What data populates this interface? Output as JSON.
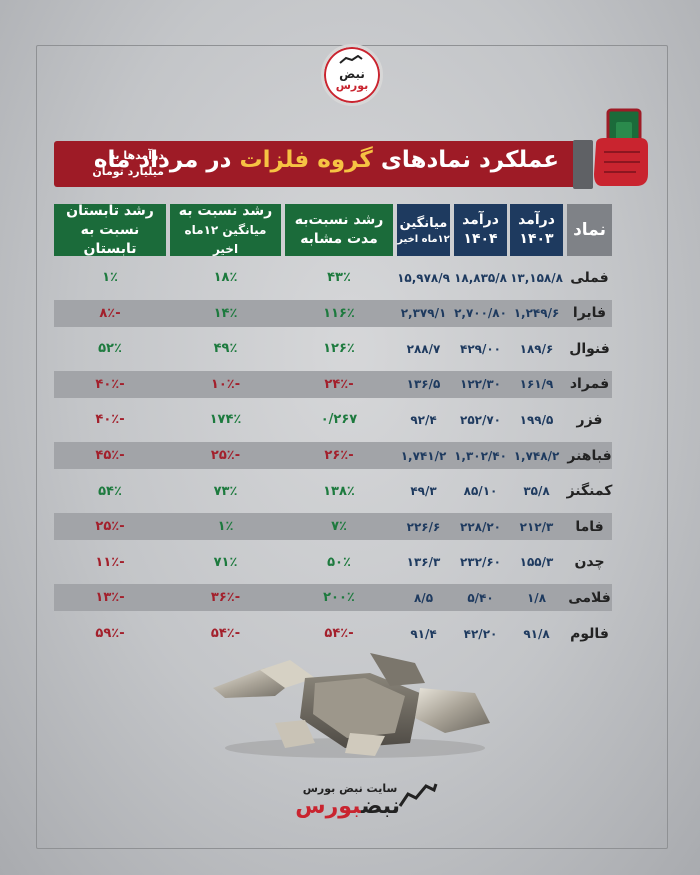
{
  "logo": {
    "line1": "نبض",
    "line2": "بورس"
  },
  "banner": {
    "title_pre": "عملکرد نمادهای ",
    "title_highlight": "گروه فلزات",
    "title_post": " در مرداد ماه",
    "note": "درآمدها به میلیارد تومان"
  },
  "headers": {
    "symbol": "نماد",
    "rev1403_l1": "درآمد",
    "rev1403_l2": "۱۴۰۳",
    "rev1404_l1": "درآمد",
    "rev1404_l2": "۱۴۰۴",
    "avg_l1": "میانگین",
    "avg_l2": "۱۲ماه اخیر",
    "growth_same_l1": "رشد نسبت‌به",
    "growth_same_l2": "مدت مشابه",
    "growth_avg_l1": "رشد نسبت به",
    "growth_avg_l2": "میانگین ۱۲ماه اخیر",
    "growth_summer_l1": "رشد تابستان",
    "growth_summer_l2": "نسبت به تابستان"
  },
  "rows": [
    {
      "symbol": "فملی",
      "rev1403": "۱۳,۱۵۸/۸",
      "rev1404": "۱۸,۸۳۵/۸",
      "avg": "۱۵,۹۷۸/۹",
      "g_same": "۴۳٪",
      "g_avg": "۱۸٪",
      "g_summer": "۱٪",
      "s_same": "pos",
      "s_avg": "pos",
      "s_summer": "pos"
    },
    {
      "symbol": "فایرا",
      "rev1403": "۱,۲۴۹/۶",
      "rev1404": "۲,۷۰۰/۸۰",
      "avg": "۲,۳۷۹/۱",
      "g_same": "۱۱۶٪",
      "g_avg": "۱۴٪",
      "g_summer": "-۸٪",
      "s_same": "pos",
      "s_avg": "pos",
      "s_summer": "neg"
    },
    {
      "symbol": "فنوال",
      "rev1403": "۱۸۹/۶",
      "rev1404": "۴۲۹/۰۰",
      "avg": "۲۸۸/۷",
      "g_same": "۱۲۶٪",
      "g_avg": "۴۹٪",
      "g_summer": "۵۲٪",
      "s_same": "pos",
      "s_avg": "pos",
      "s_summer": "pos"
    },
    {
      "symbol": "فمراد",
      "rev1403": "۱۶۱/۹",
      "rev1404": "۱۲۲/۳۰",
      "avg": "۱۳۶/۵",
      "g_same": "-۲۴٪",
      "g_avg": "-۱۰٪",
      "g_summer": "-۴۰٪",
      "s_same": "neg",
      "s_avg": "neg",
      "s_summer": "neg"
    },
    {
      "symbol": "فزر",
      "rev1403": "۱۹۹/۵",
      "rev1404": "۲۵۲/۷۰",
      "avg": "۹۲/۴",
      "g_same": "۰/۲۶۷",
      "g_avg": "۱۷۴٪",
      "g_summer": "-۴۰٪",
      "s_same": "pos",
      "s_avg": "pos",
      "s_summer": "neg"
    },
    {
      "symbol": "فباهنر",
      "rev1403": "۱,۷۴۸/۲",
      "rev1404": "۱,۳۰۲/۴۰",
      "avg": "۱,۷۴۱/۲",
      "g_same": "-۲۶٪",
      "g_avg": "-۲۵٪",
      "g_summer": "-۴۵٪",
      "s_same": "neg",
      "s_avg": "neg",
      "s_summer": "neg"
    },
    {
      "symbol": "کمنگنز",
      "rev1403": "۳۵/۸",
      "rev1404": "۸۵/۱۰",
      "avg": "۴۹/۳",
      "g_same": "۱۳۸٪",
      "g_avg": "۷۳٪",
      "g_summer": "۵۴٪",
      "s_same": "pos",
      "s_avg": "pos",
      "s_summer": "pos"
    },
    {
      "symbol": "فاما",
      "rev1403": "۲۱۲/۳",
      "rev1404": "۲۲۸/۲۰",
      "avg": "۲۲۶/۶",
      "g_same": "۷٪",
      "g_avg": "۱٪",
      "g_summer": "-۲۵٪",
      "s_same": "pos",
      "s_avg": "pos",
      "s_summer": "neg"
    },
    {
      "symbol": "چدن",
      "rev1403": "۱۵۵/۳",
      "rev1404": "۲۳۲/۶۰",
      "avg": "۱۳۶/۳",
      "g_same": "۵۰٪",
      "g_avg": "۷۱٪",
      "g_summer": "-۱۱٪",
      "s_same": "pos",
      "s_avg": "pos",
      "s_summer": "neg"
    },
    {
      "symbol": "فلامی",
      "rev1403": "۱/۸",
      "rev1404": "۵/۴۰",
      "avg": "۸/۵",
      "g_same": "۲۰۰٪",
      "g_avg": "-۳۶٪",
      "g_summer": "-۱۳٪",
      "s_same": "pos",
      "s_avg": "neg",
      "s_summer": "neg"
    },
    {
      "symbol": "فالوم",
      "rev1403": "۹۱/۸",
      "rev1404": "۴۲/۲۰",
      "avg": "۹۱/۴",
      "g_same": "-۵۴٪",
      "g_avg": "-۵۴٪",
      "g_summer": "-۵۹٪",
      "s_same": "neg",
      "s_avg": "neg",
      "s_summer": "neg"
    }
  ],
  "footer": {
    "site": "سایت نبض بورس",
    "brand_a": "نبض",
    "brand_b": "بورس"
  },
  "colors": {
    "banner": "#9e1b26",
    "navy": "#1e3a5f",
    "green_header": "#1b6b3a",
    "positive": "#1d7a3e",
    "negative": "#a3202c",
    "highlight": "#f6c343"
  }
}
